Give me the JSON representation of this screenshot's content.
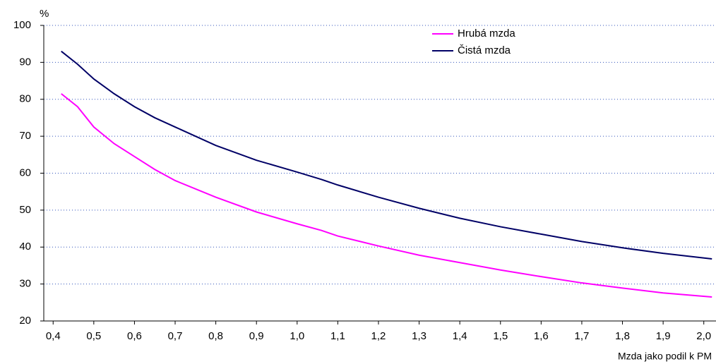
{
  "chart_data": {
    "type": "line",
    "y_label": "%",
    "x_label": "Mzda jako podil k PM",
    "x": [
      0.42,
      0.46,
      0.5,
      0.55,
      0.6,
      0.65,
      0.7,
      0.8,
      0.9,
      1.0,
      1.06,
      1.1,
      1.2,
      1.3,
      1.4,
      1.5,
      1.6,
      1.7,
      1.8,
      1.9,
      2.02
    ],
    "series": [
      {
        "name": "Hrubá mzda",
        "color": "#ff00ff",
        "values": [
          81.5,
          78,
          72.5,
          68,
          64.5,
          61,
          58,
          53.5,
          49.5,
          46.3,
          44.5,
          43,
          40.3,
          37.8,
          35.8,
          33.8,
          32,
          30.3,
          28.9,
          27.6,
          26.5
        ]
      },
      {
        "name": "Čistá mzda",
        "color": "#000066",
        "values": [
          93,
          89.5,
          85.5,
          81.5,
          78,
          75,
          72.5,
          67.5,
          63.5,
          60.3,
          58.3,
          56.8,
          53.5,
          50.5,
          47.8,
          45.5,
          43.5,
          41.5,
          39.8,
          38.3,
          36.8
        ]
      }
    ],
    "xlim": [
      0.377,
      2.03
    ],
    "ylim": [
      20,
      100
    ],
    "xticks": [
      {
        "value": 0.4,
        "label": "0,4"
      },
      {
        "value": 0.5,
        "label": "0,5"
      },
      {
        "value": 0.6,
        "label": "0,6"
      },
      {
        "value": 0.7,
        "label": "0,7"
      },
      {
        "value": 0.8,
        "label": "0,8"
      },
      {
        "value": 0.9,
        "label": "0,9"
      },
      {
        "value": 1.0,
        "label": "1,0"
      },
      {
        "value": 1.1,
        "label": "1,1"
      },
      {
        "value": 1.2,
        "label": "1,2"
      },
      {
        "value": 1.3,
        "label": "1,3"
      },
      {
        "value": 1.4,
        "label": "1,4"
      },
      {
        "value": 1.5,
        "label": "1,5"
      },
      {
        "value": 1.6,
        "label": "1,6"
      },
      {
        "value": 1.7,
        "label": "1,7"
      },
      {
        "value": 1.8,
        "label": "1,8"
      },
      {
        "value": 1.9,
        "label": "1,9"
      },
      {
        "value": 2.0,
        "label": "2,0"
      }
    ],
    "yticks": [
      20,
      30,
      40,
      50,
      60,
      70,
      80,
      90,
      100
    ],
    "grid": true,
    "legend": "upper right"
  }
}
